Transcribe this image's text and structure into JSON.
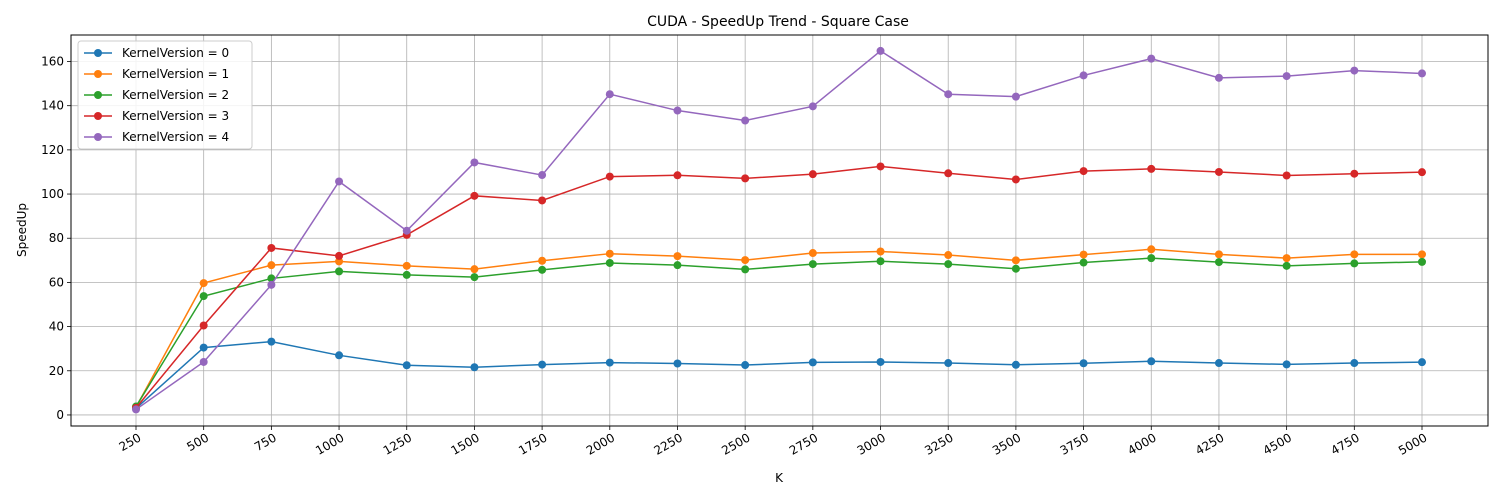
{
  "chart_data": {
    "type": "line",
    "title": "CUDA - SpeedUp Trend - Square Case",
    "xlabel": "K",
    "ylabel": "SpeedUp",
    "categories": [
      "250",
      "500",
      "750",
      "1000",
      "1250",
      "1500",
      "1750",
      "2000",
      "2250",
      "2500",
      "2750",
      "3000",
      "3250",
      "3500",
      "3750",
      "4000",
      "4250",
      "4500",
      "4750",
      "5000"
    ],
    "ylim": [
      -5,
      172
    ],
    "yticks": [
      0,
      20,
      40,
      60,
      80,
      100,
      120,
      140,
      160
    ],
    "grid": true,
    "legend_position": "upper-left",
    "series": [
      {
        "name": "KernelVersion = 0",
        "color": "#1f77b4",
        "values": [
          3,
          30.5,
          33.2,
          27,
          22.5,
          21.6,
          22.8,
          23.7,
          23.3,
          22.6,
          23.8,
          24,
          23.5,
          22.7,
          23.4,
          24.3,
          23.5,
          22.9,
          23.5,
          23.9
        ]
      },
      {
        "name": "KernelVersion = 1",
        "color": "#ff7f0e",
        "values": [
          3.5,
          59.7,
          67.8,
          69.5,
          67.5,
          66,
          69.8,
          73,
          71.9,
          70.1,
          73.3,
          74,
          72.4,
          70,
          72.6,
          75,
          72.7,
          71,
          72.7,
          72.7
        ]
      },
      {
        "name": "KernelVersion = 2",
        "color": "#2ca02c",
        "values": [
          3.8,
          53.8,
          61.8,
          65,
          63.4,
          62.4,
          65.7,
          68.8,
          67.8,
          65.9,
          68.3,
          69.6,
          68.3,
          66.2,
          69,
          71,
          69.2,
          67.5,
          68.6,
          69.3
        ]
      },
      {
        "name": "KernelVersion = 3",
        "color": "#d62728",
        "values": [
          3.2,
          40.5,
          75.6,
          72,
          81.5,
          99.2,
          97.1,
          107.9,
          108.5,
          107.1,
          109,
          112.5,
          109.4,
          106.6,
          110.4,
          111.4,
          110,
          108.4,
          109.2,
          109.9
        ]
      },
      {
        "name": "KernelVersion = 4",
        "color": "#9467bd",
        "values": [
          2.5,
          24,
          58.9,
          105.7,
          83.4,
          114.3,
          108.6,
          145.2,
          137.8,
          133.3,
          139.7,
          164.8,
          145.2,
          144.1,
          153.7,
          161.3,
          152.6,
          153.4,
          155.9,
          154.6
        ]
      }
    ]
  }
}
